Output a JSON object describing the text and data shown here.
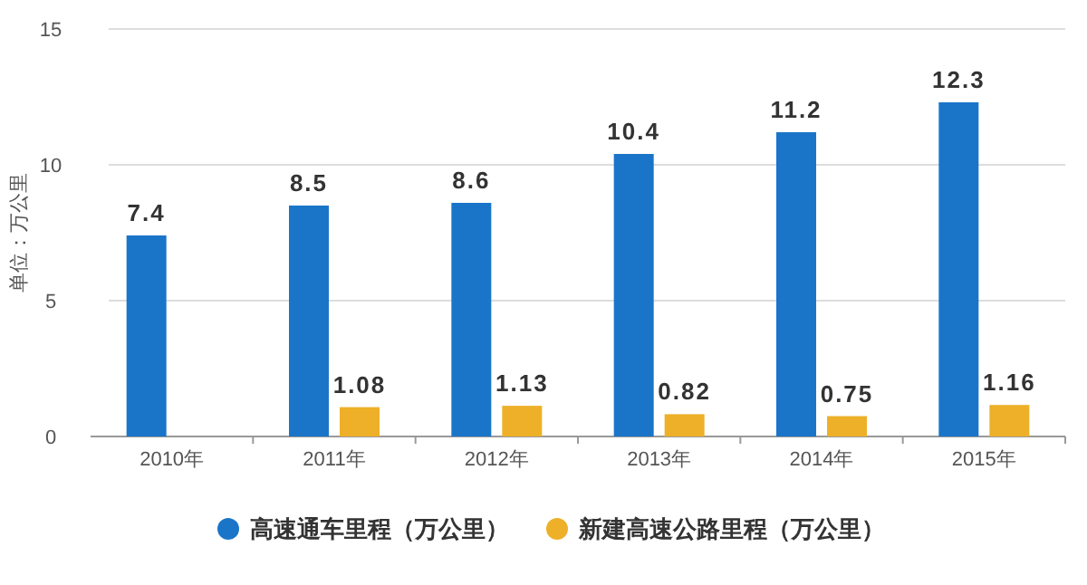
{
  "chart_data": {
    "type": "bar",
    "ylabel": "单位：万公里",
    "categories": [
      "2010年",
      "2011年",
      "2012年",
      "2013年",
      "2014年",
      "2015年"
    ],
    "series": [
      {
        "name": "高速通车里程（万公里）",
        "color": "#1a75c9",
        "values": [
          7.4,
          8.5,
          8.6,
          10.4,
          11.2,
          12.3
        ]
      },
      {
        "name": "新建高速公路里程（万公里）",
        "color": "#eeb029",
        "values": [
          null,
          1.08,
          1.13,
          0.82,
          0.75,
          1.16
        ]
      }
    ],
    "ylim": [
      0,
      15
    ],
    "yticks": [
      0,
      5,
      10,
      15
    ],
    "grid": "y",
    "legend": "bottom",
    "data_labels": true
  }
}
